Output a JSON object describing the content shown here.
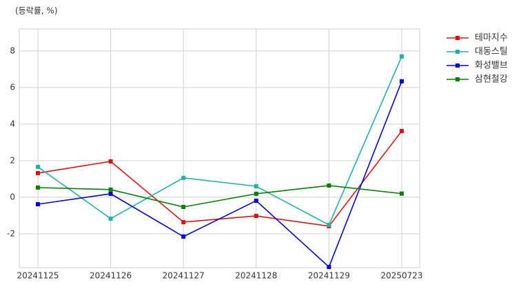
{
  "chart_data": {
    "type": "line",
    "title": "(등락률, %)",
    "categories": [
      "20241125",
      "20241126",
      "20241127",
      "20241128",
      "20241129",
      "20250723"
    ],
    "series": [
      {
        "name": "테마지수",
        "color": "#dd1111",
        "values": [
          1.32,
          1.96,
          -1.36,
          -1.02,
          -1.58,
          3.62
        ]
      },
      {
        "name": "대동스틸",
        "color": "#20b2aa",
        "values": [
          1.66,
          -1.17,
          1.06,
          0.6,
          -1.51,
          7.7
        ]
      },
      {
        "name": "화성밸브",
        "color": "#0000dd",
        "values": [
          -0.38,
          0.19,
          -2.15,
          -0.19,
          -3.81,
          6.34
        ]
      },
      {
        "name": "삼현철강",
        "color": "#008000",
        "values": [
          0.53,
          0.42,
          -0.53,
          0.19,
          0.64,
          0.2
        ]
      }
    ],
    "ylim": [
      -3.85,
      9.2
    ],
    "yticks": [
      -2,
      0,
      2,
      4,
      6,
      8
    ],
    "grid": true
  }
}
